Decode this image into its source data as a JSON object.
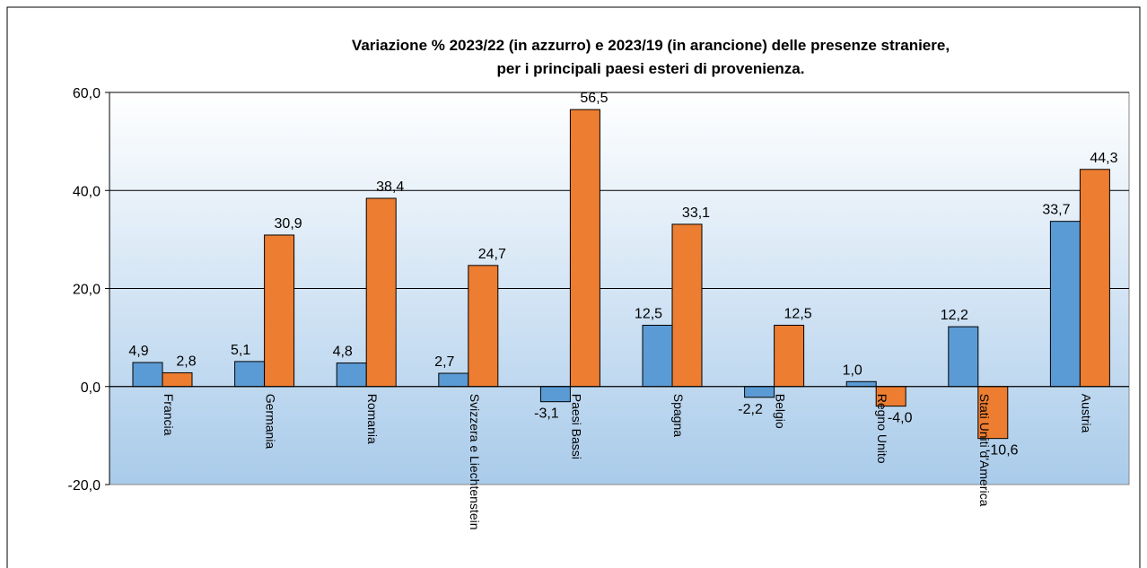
{
  "chart_data": {
    "type": "bar",
    "title": "Variazione % 2023/22 (in azzurro) e 2023/19 (in arancione) delle presenze straniere,",
    "subtitle": "per i principali  paesi esteri di provenienza.",
    "categories": [
      "Francia",
      "Germania",
      "Romania",
      "Svizzera e Liechtenstein",
      "Paesi Bassi",
      "Spagna",
      "Belgio",
      "Regno Unito",
      "Stati Uniti d'America",
      "Austria"
    ],
    "series": [
      {
        "color": "#5b9bd5",
        "values": [
          4.9,
          5.1,
          4.8,
          2.7,
          -3.1,
          12.5,
          -2.2,
          1.0,
          12.2,
          33.7
        ],
        "value_labels": [
          "4,9",
          "5,1",
          "4,8",
          "2,7",
          "-3,1",
          "12,5",
          "-2,2",
          "1,0",
          "12,2",
          "33,7"
        ]
      },
      {
        "color": "#ed7d31",
        "values": [
          2.8,
          30.9,
          38.4,
          24.7,
          56.5,
          33.1,
          12.5,
          -4.0,
          -10.6,
          44.3
        ],
        "value_labels": [
          "2,8",
          "30,9",
          "38,4",
          "24,7",
          "56,5",
          "33,1",
          "12,5",
          "-4,0",
          "-10,6",
          "44,3"
        ]
      }
    ],
    "ylim": [
      -20,
      60
    ],
    "yticks": [
      {
        "value": -20,
        "label": "-20,0"
      },
      {
        "value": 0,
        "label": "0,0"
      },
      {
        "value": 20,
        "label": "20,0"
      },
      {
        "value": 40,
        "label": "40,0"
      },
      {
        "value": 60,
        "label": "60,0"
      }
    ],
    "grid": true
  }
}
